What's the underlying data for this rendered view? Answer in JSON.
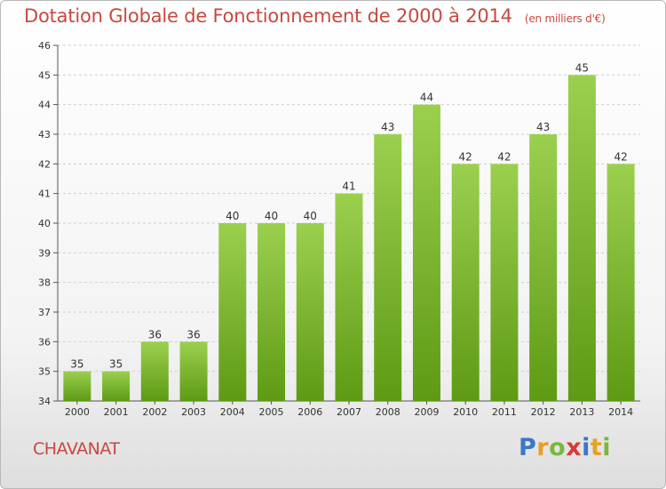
{
  "header": {
    "title": "Dotation Globale de Fonctionnement de 2000 à 2014",
    "subtitle": "(en milliers d'€)"
  },
  "footer": {
    "commune": "CHAVANAT",
    "brand": [
      "P",
      "r",
      "o",
      "x",
      "i",
      "t",
      "i"
    ]
  },
  "colors": {
    "bar_light": "#9bd04f",
    "bar_dark": "#5e9a14",
    "title": "#c8483e",
    "grid": "#cfcfcf"
  },
  "chart_data": {
    "type": "bar",
    "title": "Dotation Globale de Fonctionnement de 2000 à 2014",
    "xlabel": "",
    "ylabel": "",
    "categories": [
      "2000",
      "2001",
      "2002",
      "2003",
      "2004",
      "2005",
      "2006",
      "2007",
      "2008",
      "2009",
      "2010",
      "2011",
      "2012",
      "2013",
      "2014"
    ],
    "values": [
      35,
      35,
      36,
      36,
      40,
      40,
      40,
      41,
      43,
      44,
      42,
      42,
      43,
      45,
      42
    ],
    "data_labels": [
      "35",
      "35",
      "36",
      "36",
      "40",
      "40",
      "40",
      "41",
      "43",
      "44",
      "42",
      "42",
      "43",
      "45",
      "42"
    ],
    "ylim": [
      34,
      46
    ],
    "yticks": [
      34,
      35,
      36,
      37,
      38,
      39,
      40,
      41,
      42,
      43,
      44,
      45,
      46
    ],
    "grid": "horizontal dashed",
    "legend": "none"
  }
}
